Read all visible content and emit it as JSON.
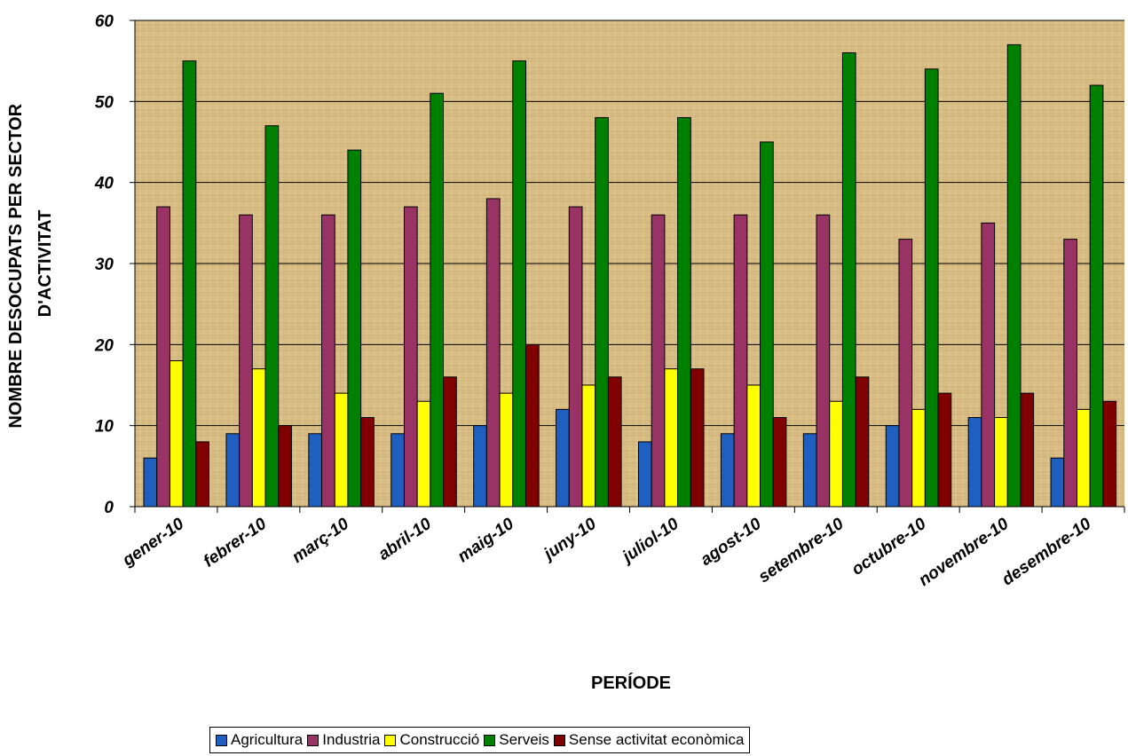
{
  "chart_data": {
    "type": "bar",
    "title": "",
    "xlabel": "PERÍODE",
    "ylabel_lines": [
      "NOMBRE DESOCUPATS PER SECTOR",
      "D'ACTIVITAT"
    ],
    "ylim": [
      0,
      60
    ],
    "yticks": [
      0,
      10,
      20,
      30,
      40,
      50,
      60
    ],
    "grid": true,
    "legend_position": "bottom",
    "categories": [
      "gener-10",
      "febrer-10",
      "març-10",
      "abril-10",
      "maig-10",
      "juny-10",
      "juliol-10",
      "agost-10",
      "setembre-10",
      "octubre-10",
      "novembre-10",
      "desembre-10"
    ],
    "series": [
      {
        "name": "Agricultura",
        "color": "#1f5fbf",
        "values": [
          6,
          9,
          9,
          9,
          10,
          12,
          8,
          9,
          9,
          10,
          11,
          6
        ]
      },
      {
        "name": "Industria",
        "color": "#993366",
        "values": [
          37,
          36,
          36,
          37,
          38,
          37,
          36,
          36,
          36,
          33,
          35,
          33
        ]
      },
      {
        "name": "Construcció",
        "color": "#ffff00",
        "values": [
          18,
          17,
          14,
          13,
          14,
          15,
          17,
          15,
          13,
          12,
          11,
          12
        ]
      },
      {
        "name": "Serveis",
        "color": "#008000",
        "values": [
          55,
          47,
          44,
          51,
          55,
          48,
          48,
          45,
          56,
          54,
          57,
          52
        ]
      },
      {
        "name": "Sense activitat econòmica",
        "color": "#800000",
        "values": [
          8,
          10,
          11,
          16,
          20,
          16,
          17,
          11,
          16,
          14,
          14,
          13
        ]
      }
    ]
  }
}
